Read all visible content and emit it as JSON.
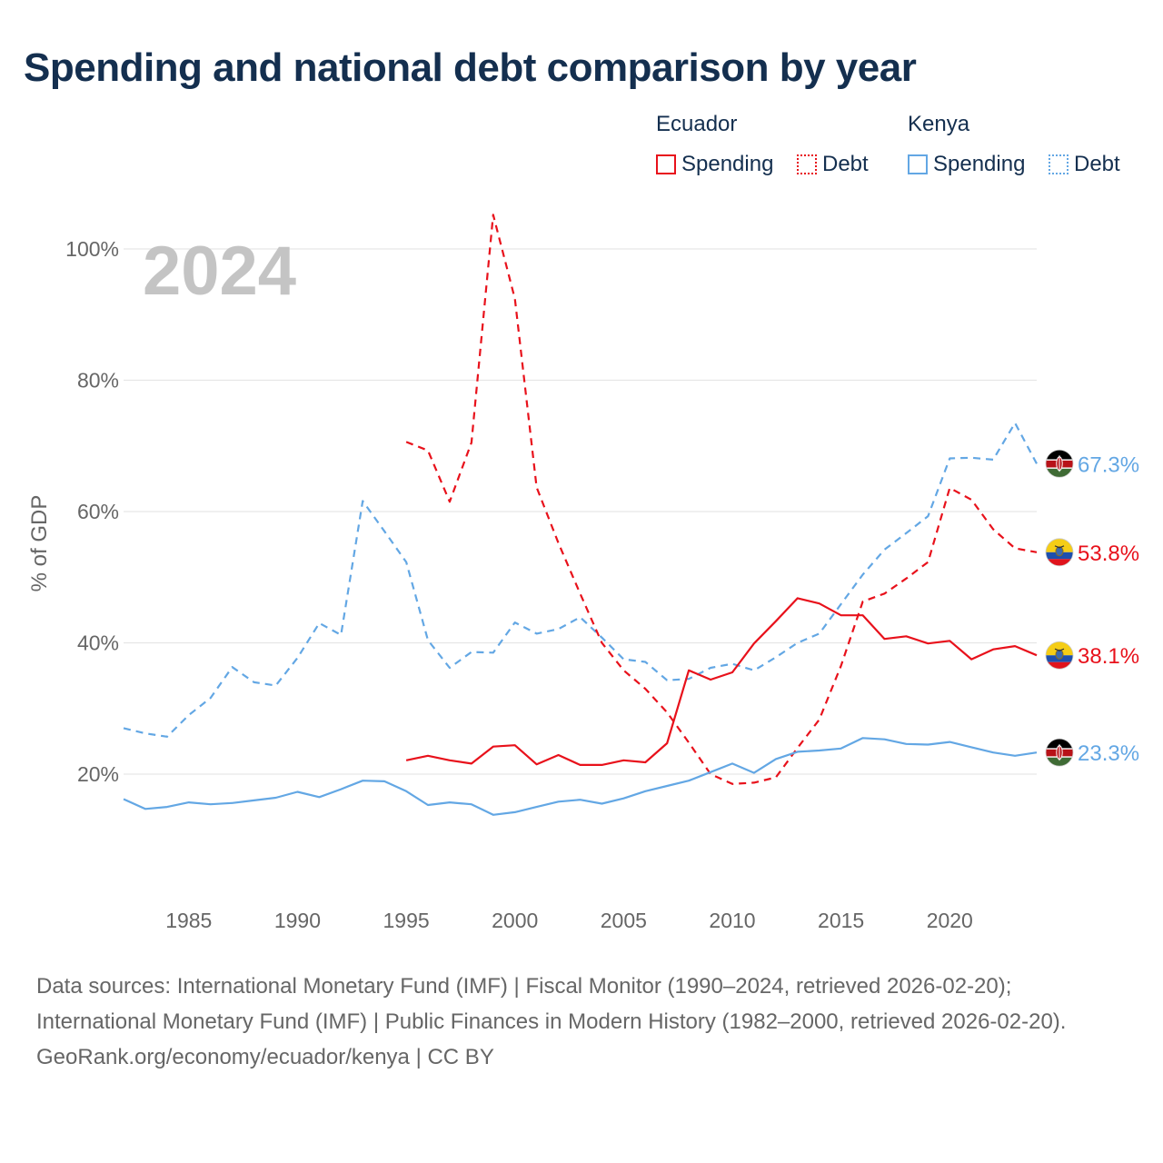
{
  "title": "Spending and national debt comparison by year",
  "colors": {
    "ecuador": "#e8111b",
    "kenya": "#63a7e4",
    "title": "#142f4f",
    "year": "#c4c4c4",
    "grid": "#e6e6e6",
    "axis_text": "#666666"
  },
  "legend": {
    "groups": [
      {
        "country": "Ecuador",
        "items": [
          {
            "label": "Spending",
            "style": "solid"
          },
          {
            "label": "Debt",
            "style": "dotted"
          }
        ]
      },
      {
        "country": "Kenya",
        "items": [
          {
            "label": "Spending",
            "style": "solid"
          },
          {
            "label": "Debt",
            "style": "dotted"
          }
        ]
      }
    ]
  },
  "sources": {
    "line1": "Data sources: International Monetary Fund (IMF) | Fiscal Monitor (1990–2024, retrieved 2026-02-20); International Monetary Fund (IMF) | Public Finances in Modern History (1982–2000, retrieved 2026-02-20).",
    "credit": "GeoRank.org/economy/ecuador/kenya | CC BY"
  },
  "chart_data": {
    "type": "line",
    "year_label": "2024",
    "ylabel": "% of GDP",
    "xlabel": "",
    "xlim": [
      1982,
      2024
    ],
    "ylim": [
      0,
      110
    ],
    "xticks": [
      1985,
      1990,
      1995,
      2000,
      2005,
      2010,
      2015,
      2020
    ],
    "yticks": [
      20,
      40,
      60,
      80,
      100
    ],
    "ytick_labels": [
      "20%",
      "40%",
      "60%",
      "80%",
      "100%"
    ],
    "series": [
      {
        "name": "Kenya Debt",
        "country": "Kenya",
        "measure": "Debt",
        "color": "#63a7e4",
        "dashed": true,
        "end_label": "67.3%",
        "flag": "kenya",
        "x": [
          1982,
          1983,
          1984,
          1985,
          1986,
          1987,
          1988,
          1989,
          1990,
          1991,
          1992,
          1993,
          1994,
          1995,
          1996,
          1997,
          1998,
          1999,
          2000,
          2001,
          2002,
          2003,
          2004,
          2005,
          2006,
          2007,
          2008,
          2009,
          2010,
          2011,
          2012,
          2013,
          2014,
          2015,
          2016,
          2017,
          2018,
          2019,
          2020,
          2021,
          2022,
          2023,
          2024
        ],
        "values": [
          27.0,
          26.2,
          25.7,
          29.0,
          31.6,
          36.3,
          34.0,
          33.5,
          37.7,
          43.0,
          41.2,
          61.6,
          57.0,
          52.3,
          40.4,
          36.2,
          38.6,
          38.5,
          43.1,
          41.4,
          42.1,
          43.9,
          40.8,
          37.5,
          37.1,
          34.3,
          34.5,
          36.2,
          36.8,
          35.8,
          37.8,
          40.0,
          41.4,
          45.9,
          50.4,
          54.2,
          56.7,
          59.3,
          68.1,
          68.2,
          67.9,
          73.5,
          67.3
        ]
      },
      {
        "name": "Ecuador Debt",
        "country": "Ecuador",
        "measure": "Debt",
        "color": "#e8111b",
        "dashed": true,
        "end_label": "53.8%",
        "flag": "ecuador",
        "x": [
          1995,
          1996,
          1997,
          1998,
          1999,
          2000,
          2001,
          2002,
          2003,
          2004,
          2005,
          2006,
          2007,
          2008,
          2009,
          2010,
          2011,
          2012,
          2013,
          2014,
          2015,
          2016,
          2017,
          2018,
          2019,
          2020,
          2021,
          2022,
          2023,
          2024
        ],
        "values": [
          70.6,
          69.3,
          61.5,
          70.5,
          105.2,
          92.4,
          63.7,
          55.2,
          47.5,
          40.0,
          35.8,
          33.0,
          29.4,
          24.8,
          20.0,
          18.5,
          18.7,
          19.5,
          24.0,
          28.3,
          36.5,
          46.3,
          47.5,
          49.8,
          52.3,
          63.6,
          61.8,
          57.3,
          54.4,
          53.8
        ]
      },
      {
        "name": "Ecuador Spending",
        "country": "Ecuador",
        "measure": "Spending",
        "color": "#e8111b",
        "dashed": false,
        "end_label": "38.1%",
        "flag": "ecuador",
        "x": [
          1995,
          1996,
          1997,
          1998,
          1999,
          2000,
          2001,
          2002,
          2003,
          2004,
          2005,
          2006,
          2007,
          2008,
          2009,
          2010,
          2011,
          2012,
          2013,
          2014,
          2015,
          2016,
          2017,
          2018,
          2019,
          2020,
          2021,
          2022,
          2023,
          2024
        ],
        "values": [
          22.1,
          22.8,
          22.1,
          21.6,
          24.2,
          24.4,
          21.5,
          22.9,
          21.4,
          21.4,
          22.1,
          21.8,
          24.7,
          35.8,
          34.4,
          35.5,
          39.9,
          43.3,
          46.8,
          46.0,
          44.2,
          44.2,
          40.6,
          41.0,
          39.9,
          40.3,
          37.5,
          39.0,
          39.5,
          38.1
        ]
      },
      {
        "name": "Kenya Spending",
        "country": "Kenya",
        "measure": "Spending",
        "color": "#63a7e4",
        "dashed": false,
        "end_label": "23.3%",
        "flag": "kenya",
        "x": [
          1982,
          1983,
          1984,
          1985,
          1986,
          1987,
          1988,
          1989,
          1990,
          1991,
          1992,
          1993,
          1994,
          1995,
          1996,
          1997,
          1998,
          1999,
          2000,
          2001,
          2002,
          2003,
          2004,
          2005,
          2006,
          2007,
          2008,
          2009,
          2010,
          2011,
          2012,
          2013,
          2014,
          2015,
          2016,
          2017,
          2018,
          2019,
          2020,
          2021,
          2022,
          2023,
          2024
        ],
        "values": [
          16.2,
          14.7,
          15.0,
          15.7,
          15.4,
          15.6,
          16.0,
          16.4,
          17.3,
          16.5,
          17.7,
          19.0,
          18.9,
          17.4,
          15.3,
          15.7,
          15.4,
          13.8,
          14.2,
          15.0,
          15.8,
          16.1,
          15.5,
          16.3,
          17.4,
          18.2,
          19.0,
          20.3,
          21.6,
          20.2,
          22.3,
          23.4,
          23.6,
          23.9,
          25.5,
          25.3,
          24.6,
          24.5,
          24.9,
          24.1,
          23.3,
          22.8,
          23.3
        ]
      }
    ]
  }
}
